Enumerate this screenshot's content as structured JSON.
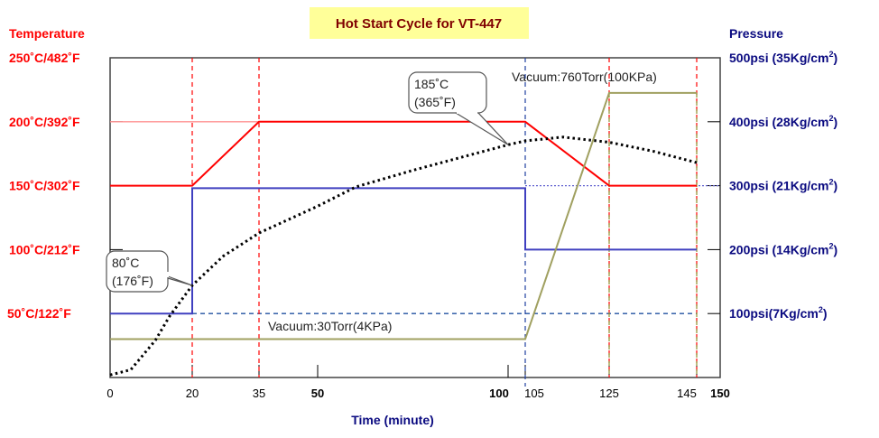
{
  "chart_data": {
    "type": "line",
    "title": "Hot Start Cycle for VT-447",
    "xlabel": "Time (minute)",
    "ylabel_left": "Temperature",
    "ylabel_right": "Pressure",
    "x_ticks": [
      {
        "value": 0,
        "label": "0",
        "bold": false
      },
      {
        "value": 20,
        "label": "20",
        "bold": false
      },
      {
        "value": 35,
        "label": "35",
        "bold": false
      },
      {
        "value": 50,
        "label": "50",
        "bold": true
      },
      {
        "value": 100,
        "label": "100",
        "bold": true
      },
      {
        "value": 105,
        "label": "105",
        "bold": false
      },
      {
        "value": 125,
        "label": "125",
        "bold": false
      },
      {
        "value": 145,
        "label": "145",
        "bold": false
      },
      {
        "value": 150,
        "label": "150",
        "bold": true
      }
    ],
    "xlim": [
      0,
      150
    ],
    "y_left": {
      "lim": [
        0,
        250
      ],
      "ticks": [
        {
          "value": 250,
          "label": "250˚C/482˚F"
        },
        {
          "value": 200,
          "label": "200˚C/392˚F"
        },
        {
          "value": 150,
          "label": "150˚C/302˚F"
        },
        {
          "value": 100,
          "label": "100˚C/212˚F"
        },
        {
          "value": 50,
          "label": "50˚C/122˚F"
        }
      ]
    },
    "y_right": {
      "lim": [
        0,
        500
      ],
      "ticks": [
        {
          "value": 500,
          "label": "500psi (35Kg/cm",
          "sup": "2",
          "end": ")"
        },
        {
          "value": 400,
          "label": "400psi (28Kg/cm",
          "sup": "2",
          "end": ")"
        },
        {
          "value": 300,
          "label": "300psi (21Kg/cm",
          "sup": "2",
          "end": ")"
        },
        {
          "value": 200,
          "label": "200psi (14Kg/cm",
          "sup": "2",
          "end": ")"
        },
        {
          "value": 100,
          "label": "100psi(7Kg/cm",
          "sup": "2",
          "end": ")"
        }
      ]
    },
    "series": [
      {
        "key": "temperature_setpoint",
        "axis": "left",
        "color": "#ff0000",
        "style": "solid",
        "points": [
          [
            0,
            150
          ],
          [
            20,
            150
          ],
          [
            35,
            200
          ],
          [
            105,
            200
          ],
          [
            125,
            150
          ],
          [
            145,
            150
          ]
        ]
      },
      {
        "key": "pressure",
        "axis": "right",
        "color": "#4040c0",
        "style": "solid",
        "points": [
          [
            0,
            100
          ],
          [
            20,
            100
          ],
          [
            20,
            296
          ],
          [
            105,
            296
          ],
          [
            105,
            200
          ],
          [
            145,
            200
          ]
        ]
      },
      {
        "key": "vacuum",
        "axis": "right",
        "color": "#a0a060",
        "style": "solid",
        "points": [
          [
            0,
            60
          ],
          [
            105,
            60
          ],
          [
            125,
            445
          ],
          [
            145,
            445
          ]
        ]
      },
      {
        "key": "part_temperature",
        "axis": "left",
        "color": "#000000",
        "style": "dotted",
        "points": [
          [
            0,
            2
          ],
          [
            5,
            6
          ],
          [
            11,
            29
          ],
          [
            14.5,
            48
          ],
          [
            20,
            72
          ],
          [
            27,
            95
          ],
          [
            35,
            113
          ],
          [
            50,
            134
          ],
          [
            60,
            149
          ],
          [
            75,
            162
          ],
          [
            90,
            174
          ],
          [
            100,
            182
          ],
          [
            105,
            185
          ],
          [
            114,
            188
          ],
          [
            125,
            184
          ],
          [
            135,
            177
          ],
          [
            145,
            168
          ]
        ]
      }
    ],
    "reference_lines": [
      {
        "axis": "left",
        "value": 200,
        "from": 0,
        "to": 35,
        "color": "#ff9090",
        "style": "solid"
      },
      {
        "axis": "right",
        "value": 100,
        "from": 20,
        "to": 145,
        "color": "#2050a0",
        "style": "dashed"
      },
      {
        "axis": "right",
        "value": 300,
        "from": 105,
        "to": 150,
        "color": "#6060d0",
        "style": "dotted"
      }
    ],
    "vertical_markers": [
      {
        "x": 20,
        "color": "#ff0000"
      },
      {
        "x": 35,
        "color": "#ff0000"
      },
      {
        "x": 125,
        "color": "#ff0000"
      },
      {
        "x": 145,
        "color": "#ff0000"
      },
      {
        "x": 105,
        "color": "#2040a0"
      },
      {
        "x": 125,
        "color": "#909030",
        "from_right": 445
      },
      {
        "x": 145,
        "color": "#909030",
        "from_right": 445
      }
    ],
    "annotations": [
      {
        "text1": "185˚C",
        "text2": "(365˚F)",
        "x": 100,
        "y_left": 182
      },
      {
        "text1": "80˚C",
        "text2": "(176˚F)",
        "x": 20,
        "y_left": 72
      }
    ],
    "labels": {
      "vacuum_high": "Vacuum:760Torr(100KPa)",
      "vacuum_low": "Vacuum:30Torr(4KPa)"
    },
    "colors": {
      "title_bg": "#ffff99",
      "title_text": "#800000",
      "left_axis": "#ff0000",
      "right_axis": "#0a0a80"
    }
  }
}
